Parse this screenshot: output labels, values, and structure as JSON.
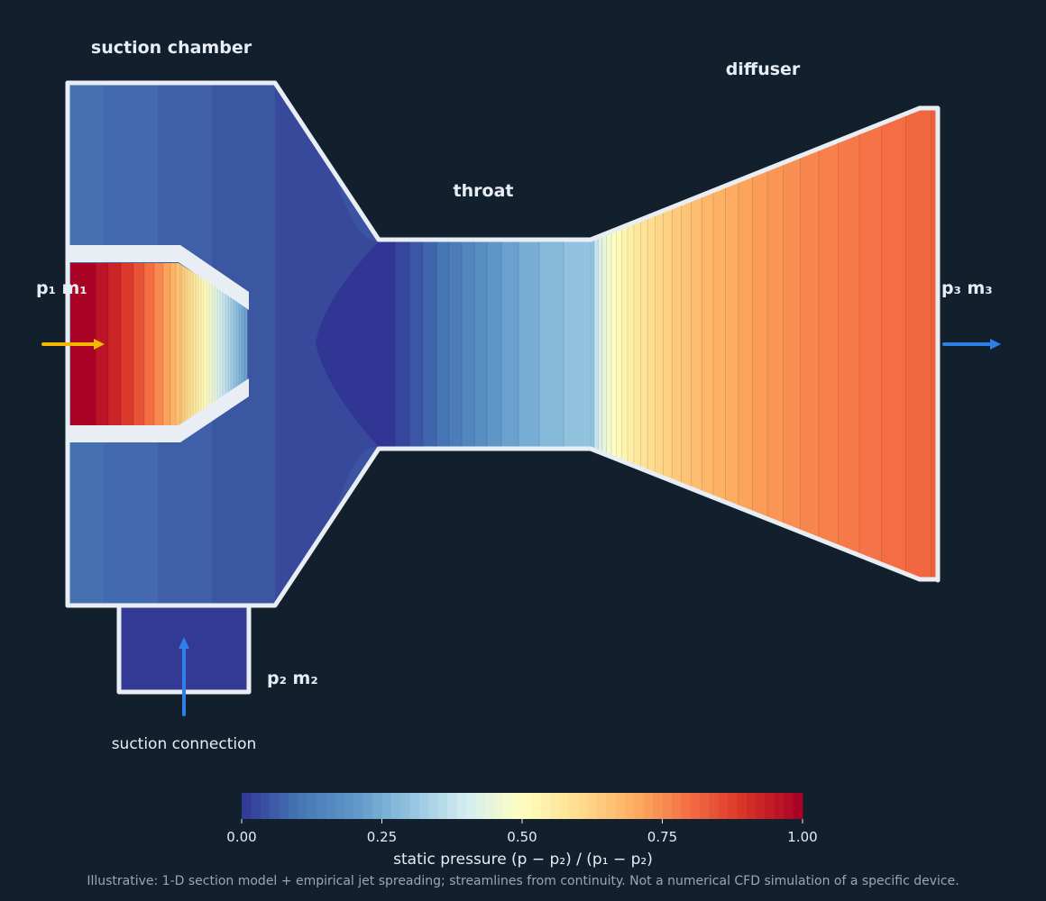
{
  "labels": {
    "suction_chamber": "suction chamber",
    "throat": "throat",
    "diffuser": "diffuser",
    "inlet_primary": "p₁  m₁",
    "outlet": "p₃  m₃",
    "inlet_secondary": "p₂  m₂",
    "suction_connection": "suction connection"
  },
  "colorbar": {
    "label": "static pressure (p − p₂) / (p₁ − p₂)",
    "min": 0,
    "max": 1,
    "ticks": [
      "0.00",
      "0.25",
      "0.50",
      "0.75",
      "1.00"
    ]
  },
  "footnote": "Illustrative: 1-D section model + empirical jet spreading; streamlines from continuity. Not a numerical CFD simulation of a specific device.",
  "colors": {
    "background": "#12202e",
    "wall": "#e9eef5",
    "primary_arrow": "#f5b800",
    "secondary_arrow": "#2f7fe8",
    "colormap": "RdYlBu_r"
  },
  "pressure_levels": {
    "suction_chamber": 0.06,
    "suction_connection": 0.0,
    "mixing_zone_min": 0.0,
    "nozzle_inlet": 1.0,
    "nozzle_exit": 0.2,
    "throat_exit": 0.3,
    "diffuser_outlet": 0.82
  }
}
